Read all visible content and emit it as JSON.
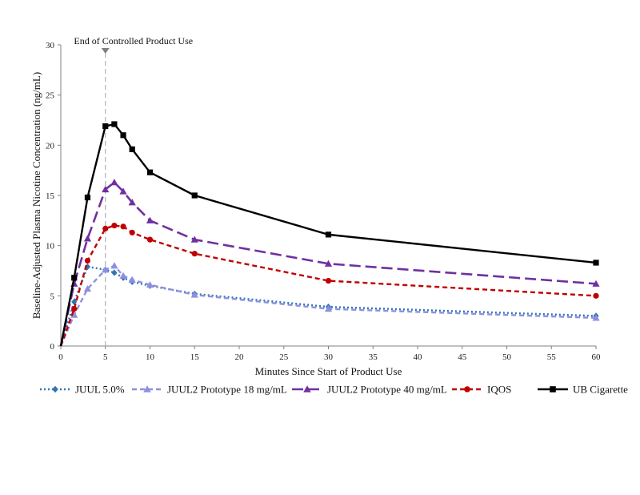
{
  "chart_data": {
    "type": "line",
    "title": "",
    "xlabel": "Minutes Since Start of Product Use",
    "ylabel": "Baseline-Adjusted Plasma Nicotine Concentration (ng/mL)",
    "xlim": [
      0,
      60
    ],
    "ylim": [
      0,
      30
    ],
    "xticks": [
      0,
      5,
      10,
      15,
      20,
      25,
      30,
      35,
      40,
      45,
      50,
      55,
      60
    ],
    "yticks": [
      0,
      5,
      10,
      15,
      20,
      25,
      30
    ],
    "grid": false,
    "legend_position": "bottom",
    "annotation": {
      "text": "End of Controlled Product Use",
      "x": 5
    },
    "series": [
      {
        "name": "JUUL 5.0%",
        "color": "#2E75B6",
        "marker": "diamond",
        "dash": "dotted",
        "x": [
          0,
          1.5,
          3,
          5,
          6,
          7,
          8,
          10,
          15,
          30,
          60
        ],
        "y": [
          0,
          4.4,
          7.9,
          7.6,
          7.3,
          6.8,
          6.4,
          6.0,
          5.2,
          3.9,
          3.0
        ]
      },
      {
        "name": "JUUL2 Prototype 18 mg/mL",
        "color": "#8F8FE0",
        "marker": "triangle",
        "dash": "dashed",
        "x": [
          0,
          1.5,
          3,
          5,
          6,
          7,
          8,
          10,
          15,
          30,
          60
        ],
        "y": [
          0,
          3.1,
          5.7,
          7.6,
          8.0,
          7.0,
          6.6,
          6.1,
          5.1,
          3.7,
          2.8
        ]
      },
      {
        "name": "JUUL2 Prototype 40 mg/mL",
        "color": "#7030A0",
        "marker": "triangle",
        "dash": "longdash",
        "x": [
          0,
          1.5,
          3,
          5,
          6,
          7,
          8,
          10,
          15,
          30,
          60
        ],
        "y": [
          0,
          6.2,
          10.7,
          15.6,
          16.3,
          15.4,
          14.3,
          12.5,
          10.6,
          8.2,
          6.2
        ]
      },
      {
        "name": "IQOS",
        "color": "#C00000",
        "marker": "circle",
        "dash": "dashed",
        "x": [
          0,
          1.5,
          3,
          5,
          6,
          7,
          8,
          10,
          15,
          30,
          60
        ],
        "y": [
          0,
          3.7,
          8.5,
          11.7,
          12.0,
          11.9,
          11.3,
          10.6,
          9.2,
          6.5,
          5.0
        ]
      },
      {
        "name": "UB Cigarette",
        "color": "#000000",
        "marker": "square",
        "dash": "solid",
        "x": [
          0,
          1.5,
          3,
          5,
          6,
          7,
          8,
          10,
          15,
          30,
          60
        ],
        "y": [
          0,
          6.8,
          14.8,
          21.9,
          22.1,
          21.0,
          19.6,
          17.3,
          15.0,
          11.1,
          8.3
        ]
      }
    ]
  }
}
